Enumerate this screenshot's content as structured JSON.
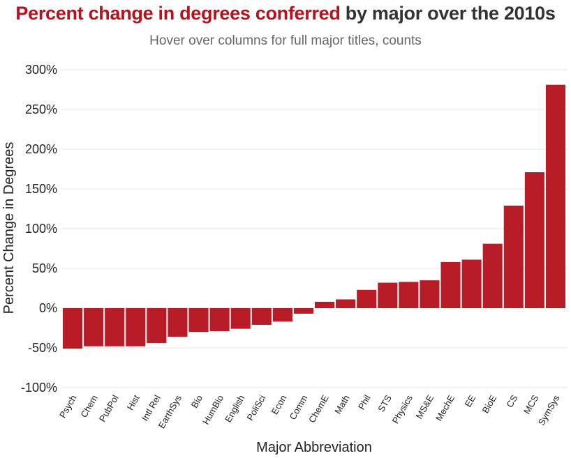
{
  "title": {
    "highlight": "Percent change in degrees conferred",
    "rest": " by major over the 2010s"
  },
  "subtitle": "Hover over columns for full major titles, counts",
  "chart_data": {
    "type": "bar",
    "title": "Percent change in degrees conferred by major over the 2010s",
    "subtitle": "Hover over columns for full major titles, counts",
    "xlabel": "Major Abbreviation",
    "ylabel": "Percent Change in Degrees",
    "ylim": [
      -100,
      300
    ],
    "yticks": [
      -100,
      -50,
      0,
      50,
      100,
      150,
      200,
      250,
      300
    ],
    "ytick_labels": [
      "-100%",
      "-50%",
      "0%",
      "50%",
      "100%",
      "150%",
      "200%",
      "250%",
      "300%"
    ],
    "grid": true,
    "bar_color": "#b81d27",
    "highlight_color": "#b5121b",
    "categories": [
      "Psych",
      "Chem",
      "PubPol",
      "Hist",
      "Intl Rel",
      "EarthSys",
      "Bio",
      "HumBio",
      "English",
      "PoliSci",
      "Econ",
      "Comm",
      "ChemE",
      "Math",
      "Phil",
      "STS",
      "Physics",
      "MS&E",
      "MechE",
      "EE",
      "BioE",
      "CS",
      "MCS",
      "SymSys"
    ],
    "values": [
      -51,
      -48,
      -48,
      -48,
      -44,
      -36,
      -30,
      -29,
      -26,
      -21,
      -17,
      -7,
      8,
      11,
      23,
      32,
      33,
      35,
      58,
      61,
      81,
      129,
      171,
      281
    ]
  }
}
